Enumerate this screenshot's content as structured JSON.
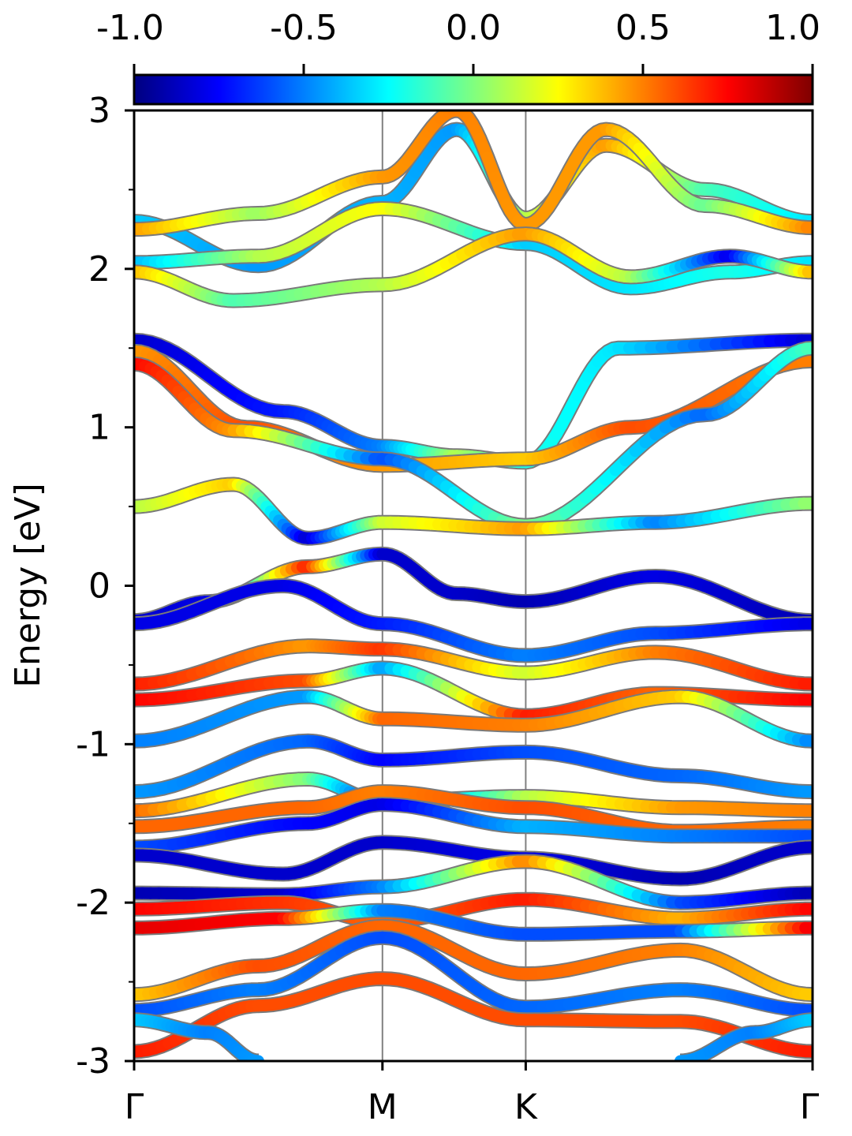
{
  "chart_data": {
    "type": "line",
    "ylabel": "Energy [eV]",
    "ylim": [
      -3,
      3
    ],
    "y_ticks": [
      "-3",
      "-2",
      "-1",
      "0",
      "1",
      "2",
      "3"
    ],
    "y_tick_values": [
      -3,
      -2,
      -1,
      0,
      1,
      2,
      3
    ],
    "y_minor_ticks": [
      -2.5,
      -1.5,
      -0.5,
      0.5,
      1.5,
      2.5
    ],
    "x_ticks": [
      "Γ",
      "M",
      "K",
      "Γ"
    ],
    "x_tick_values": [
      0,
      1.0,
      1.577,
      2.732
    ],
    "xlim": [
      0,
      2.732
    ],
    "colorbar": {
      "colormap": "jet",
      "range": [
        -1.0,
        1.0
      ],
      "ticks": [
        "-1.0",
        "-0.5",
        "0.0",
        "0.5",
        "1.0"
      ],
      "tick_values": [
        -1.0,
        -0.5,
        0.0,
        0.5,
        1.0
      ]
    },
    "bands": [
      {
        "x": [
          0,
          0.5,
          1.0,
          1.3,
          1.577,
          1.9,
          2.3,
          2.732
        ],
        "energy": [
          2.3,
          2.02,
          2.42,
          2.88,
          2.32,
          2.78,
          2.5,
          2.3
        ],
        "weight": [
          -0.35,
          -0.45,
          -0.4,
          -0.45,
          0.1,
          0.45,
          -0.1,
          -0.3
        ]
      },
      {
        "x": [
          0,
          0.5,
          1.0,
          1.3,
          1.577,
          1.9,
          2.3,
          2.732
        ],
        "energy": [
          2.25,
          2.35,
          2.58,
          3.0,
          2.28,
          2.88,
          2.4,
          2.26
        ],
        "weight": [
          0.45,
          0.05,
          0.45,
          0.5,
          0.45,
          0.45,
          -0.05,
          0.5
        ]
      },
      {
        "x": [
          0,
          0.5,
          1.0,
          1.577,
          2.0,
          2.4,
          2.732
        ],
        "energy": [
          2.04,
          2.08,
          2.38,
          2.16,
          1.88,
          1.98,
          2.04
        ],
        "weight": [
          -0.4,
          0.1,
          0.25,
          -0.35,
          -0.3,
          -0.2,
          -0.3
        ]
      },
      {
        "x": [
          0,
          0.4,
          1.0,
          1.577,
          2.0,
          2.4,
          2.732
        ],
        "energy": [
          1.98,
          1.8,
          1.9,
          2.22,
          1.95,
          2.08,
          1.98
        ],
        "weight": [
          0.4,
          -0.1,
          0.1,
          0.45,
          0.1,
          -0.8,
          0.4
        ]
      },
      {
        "x": [
          0,
          0.6,
          1.0,
          1.3,
          1.577,
          1.95,
          2.732
        ],
        "energy": [
          1.55,
          1.1,
          0.88,
          0.82,
          0.78,
          1.5,
          1.55
        ],
        "weight": [
          -0.85,
          -0.7,
          -0.5,
          0.1,
          -0.2,
          -0.3,
          -0.85
        ]
      },
      {
        "x": [
          0,
          0.45,
          1.0,
          1.577,
          2.0,
          2.732
        ],
        "energy": [
          1.48,
          1.0,
          0.76,
          0.8,
          1.0,
          1.42
        ],
        "weight": [
          0.45,
          0.6,
          0.45,
          0.35,
          0.6,
          0.5
        ]
      },
      {
        "x": [
          0,
          0.4,
          1.0,
          1.577,
          2.3,
          2.732
        ],
        "energy": [
          1.4,
          0.98,
          0.8,
          0.38,
          1.08,
          1.5
        ],
        "weight": [
          0.75,
          0.45,
          -0.6,
          0.0,
          -0.55,
          -0.1
        ]
      },
      {
        "x": [
          0,
          0.4,
          0.7,
          1.0,
          1.577,
          2.1,
          2.732
        ],
        "energy": [
          0.5,
          0.64,
          0.3,
          0.4,
          0.36,
          0.4,
          0.52
        ],
        "weight": [
          0.1,
          0.35,
          -0.85,
          0.15,
          0.45,
          -0.5,
          0.05
        ]
      },
      {
        "x": [
          0,
          0.3,
          0.7,
          1.0,
          1.3,
          1.577,
          2.1,
          2.732
        ],
        "energy": [
          -0.22,
          -0.1,
          0.12,
          0.2,
          -0.05,
          -0.1,
          0.06,
          -0.22
        ],
        "weight": [
          -0.85,
          -0.8,
          0.7,
          -0.85,
          -0.85,
          -0.9,
          -0.8,
          -0.9
        ]
      },
      {
        "x": [
          0,
          0.6,
          1.0,
          1.577,
          2.1,
          2.732
        ],
        "energy": [
          -0.24,
          0.0,
          -0.24,
          -0.44,
          -0.3,
          -0.24
        ],
        "weight": [
          -0.8,
          -0.8,
          -0.7,
          -0.5,
          -0.6,
          -0.8
        ]
      },
      {
        "x": [
          0,
          0.7,
          1.0,
          1.577,
          2.1,
          2.732
        ],
        "energy": [
          -0.62,
          -0.38,
          -0.4,
          -0.55,
          -0.42,
          -0.62
        ],
        "weight": [
          0.7,
          0.45,
          0.65,
          0.15,
          0.5,
          0.7
        ]
      },
      {
        "x": [
          0,
          0.7,
          1.0,
          1.577,
          2.1,
          2.732
        ],
        "energy": [
          -0.72,
          -0.6,
          -0.52,
          -0.82,
          -0.68,
          -0.72
        ],
        "weight": [
          0.75,
          0.6,
          -0.45,
          0.7,
          0.55,
          0.75
        ]
      },
      {
        "x": [
          0,
          0.7,
          1.0,
          1.577,
          2.2,
          2.732
        ],
        "energy": [
          -0.98,
          -0.7,
          -0.84,
          -0.88,
          -0.7,
          -0.98
        ],
        "weight": [
          -0.5,
          -0.45,
          0.55,
          0.5,
          0.35,
          -0.5
        ]
      },
      {
        "x": [
          0,
          0.7,
          1.0,
          1.577,
          2.2,
          2.732
        ],
        "energy": [
          -1.3,
          -0.98,
          -1.1,
          -1.05,
          -1.2,
          -1.3
        ],
        "weight": [
          -0.45,
          -0.55,
          -0.75,
          -0.6,
          -0.55,
          -0.45
        ]
      },
      {
        "x": [
          0,
          0.7,
          1.0,
          1.577,
          2.2,
          2.732
        ],
        "energy": [
          -1.42,
          -1.22,
          -1.36,
          -1.33,
          -1.4,
          -1.42
        ],
        "weight": [
          0.55,
          0.0,
          -0.75,
          0.1,
          0.45,
          0.5
        ]
      },
      {
        "x": [
          0,
          0.7,
          1.0,
          1.577,
          2.2,
          2.732
        ],
        "energy": [
          -1.52,
          -1.4,
          -1.3,
          -1.4,
          -1.55,
          -1.52
        ],
        "weight": [
          0.55,
          0.55,
          0.5,
          0.6,
          0.55,
          0.5
        ]
      },
      {
        "x": [
          0,
          0.7,
          1.0,
          1.577,
          2.2,
          2.732
        ],
        "energy": [
          -1.65,
          -1.5,
          -1.38,
          -1.52,
          -1.58,
          -1.58
        ],
        "weight": [
          -0.6,
          -0.75,
          -0.8,
          -0.4,
          -0.5,
          -0.6
        ]
      },
      {
        "x": [
          0,
          0.6,
          1.0,
          1.577,
          2.2,
          2.732
        ],
        "energy": [
          -1.7,
          -1.82,
          -1.62,
          -1.72,
          -1.85,
          -1.65
        ],
        "weight": [
          -0.85,
          -0.85,
          -0.85,
          -0.8,
          -0.9,
          -0.85
        ]
      },
      {
        "x": [
          0,
          0.6,
          1.0,
          1.577,
          2.2,
          2.732
        ],
        "energy": [
          -1.94,
          -1.95,
          -1.9,
          -1.74,
          -2.0,
          -1.94
        ],
        "weight": [
          -0.9,
          -0.85,
          -0.5,
          0.5,
          -0.6,
          -0.9
        ]
      },
      {
        "x": [
          0,
          0.6,
          1.0,
          1.577,
          2.2,
          2.732
        ],
        "energy": [
          -2.04,
          -2.0,
          -2.12,
          -1.98,
          -2.1,
          -2.04
        ],
        "weight": [
          0.75,
          0.65,
          0.55,
          0.7,
          0.4,
          0.75
        ]
      },
      {
        "x": [
          0,
          0.6,
          1.0,
          1.577,
          2.2,
          2.732
        ],
        "energy": [
          -2.16,
          -2.1,
          -2.05,
          -2.2,
          -2.18,
          -2.16
        ],
        "weight": [
          0.8,
          0.75,
          -0.5,
          -0.6,
          -0.6,
          0.8
        ]
      },
      {
        "x": [
          0,
          0.5,
          1.0,
          1.577,
          2.2,
          2.732
        ],
        "energy": [
          -2.58,
          -2.4,
          -2.15,
          -2.45,
          -2.3,
          -2.58
        ],
        "weight": [
          0.35,
          0.6,
          0.55,
          0.55,
          0.5,
          0.35
        ]
      },
      {
        "x": [
          0,
          0.5,
          1.0,
          1.577,
          2.2,
          2.732
        ],
        "energy": [
          -2.68,
          -2.55,
          -2.22,
          -2.66,
          -2.55,
          -2.68
        ],
        "weight": [
          -0.6,
          -0.5,
          -0.6,
          -0.55,
          -0.5,
          -0.6
        ]
      },
      {
        "x": [
          0,
          0.5,
          1.0,
          1.577,
          2.2,
          2.732
        ],
        "energy": [
          -2.94,
          -2.65,
          -2.48,
          -2.74,
          -2.75,
          -2.94
        ],
        "weight": [
          0.7,
          0.6,
          0.6,
          0.6,
          0.6,
          0.7
        ]
      },
      {
        "x": [
          0,
          0.3,
          0.5
        ],
        "energy": [
          -2.74,
          -2.82,
          -3.0
        ],
        "weight": [
          -0.35,
          -0.5,
          -0.45
        ]
      },
      {
        "x": [
          2.2,
          2.5,
          2.732
        ],
        "energy": [
          -3.0,
          -2.82,
          -2.74
        ],
        "weight": [
          -0.45,
          -0.5,
          -0.35
        ]
      }
    ]
  }
}
